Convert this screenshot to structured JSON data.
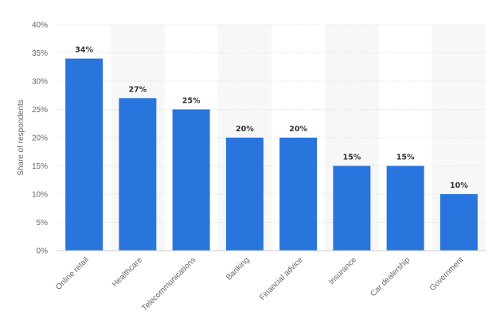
{
  "chart_data": {
    "type": "bar",
    "categories": [
      "Online retail",
      "Healthcare",
      "Telecommunications",
      "Banking",
      "Financial advice",
      "Insurance",
      "Car dealership",
      "Government"
    ],
    "series": [
      {
        "values": [
          34,
          27,
          25,
          20,
          20,
          15,
          15,
          10
        ]
      }
    ],
    "data_labels": [
      "34%",
      "27%",
      "25%",
      "20%",
      "20%",
      "15%",
      "15%",
      "10%"
    ],
    "ylabel": "Share of respondents",
    "xlabel": "",
    "ylim": [
      0,
      40
    ],
    "yticks": [
      0,
      5,
      10,
      15,
      20,
      25,
      30,
      35,
      40
    ],
    "ytick_labels": [
      "0%",
      "5%",
      "10%",
      "15%",
      "20%",
      "25%",
      "30%",
      "35%",
      "40%"
    ],
    "grid": true,
    "bar_color": "#2876dd",
    "band_color": "#f7f7f7"
  }
}
